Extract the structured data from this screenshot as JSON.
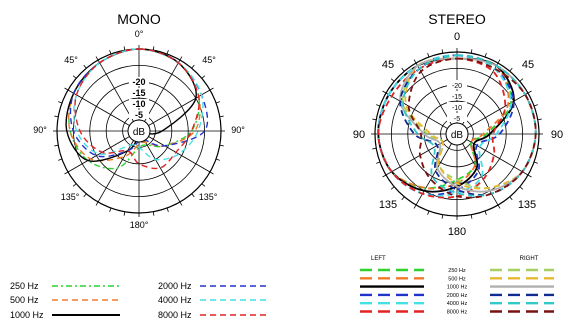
{
  "colors": {
    "250": "#2fd12f",
    "500": "#f07a2a",
    "1000": "#000000",
    "2000": "#2233cc",
    "4000": "#44e0e8",
    "8000": "#e02424",
    "right_250": "#a8d060",
    "right_500": "#e8b830",
    "right_1000": "#b0b0b0",
    "right_2000": "#102a90",
    "right_4000": "#30c8c8",
    "right_8000": "#7a1010"
  },
  "chart_data": [
    {
      "type": "polar-line",
      "title": "MONO",
      "angle_labels": [
        "0°",
        "45°",
        "90°",
        "135°",
        "180°",
        "135°",
        "90°",
        "45°"
      ],
      "radial_labels": [
        "-5",
        "-10",
        "-15",
        "-20"
      ],
      "center_label": "dB",
      "rlim": [
        -25,
        0
      ],
      "grid": true,
      "series": [
        {
          "name": "250 Hz",
          "style": "dash-dot",
          "color_key": "250",
          "angles": [
            0,
            30,
            60,
            90,
            120,
            150,
            180,
            210,
            240,
            270,
            300,
            330
          ],
          "values": [
            0,
            -1,
            -4,
            -9,
            -16,
            -20,
            -20,
            -12,
            -7,
            -4,
            -2,
            -1
          ]
        },
        {
          "name": "500 Hz",
          "style": "dashed",
          "color_key": "500",
          "angles": [
            0,
            30,
            60,
            90,
            120,
            150,
            180,
            210,
            240,
            270,
            300,
            330
          ],
          "values": [
            0,
            -1,
            -4,
            -8,
            -16,
            -21,
            -21,
            -16,
            -8,
            -4,
            -2,
            -1
          ]
        },
        {
          "name": "1000 Hz",
          "style": "solid",
          "color_key": "1000",
          "angles": [
            0,
            30,
            60,
            90,
            120,
            150,
            180,
            210,
            240,
            270,
            300,
            330
          ],
          "values": [
            0,
            -1,
            -5,
            -18,
            -24,
            -24,
            -24,
            -18,
            -7,
            -3,
            -2,
            -1
          ]
        },
        {
          "name": "2000 Hz",
          "style": "dashed",
          "color_key": "2000",
          "angles": [
            0,
            30,
            60,
            90,
            120,
            150,
            180,
            210,
            240,
            270,
            300,
            330
          ],
          "values": [
            0,
            -1,
            -3,
            -5,
            -16,
            -22,
            -22,
            -18,
            -10,
            -5,
            -2,
            -1
          ]
        },
        {
          "name": "4000 Hz",
          "style": "dashed",
          "color_key": "4000",
          "angles": [
            0,
            30,
            60,
            90,
            120,
            150,
            180,
            210,
            240,
            270,
            300,
            330
          ],
          "values": [
            0,
            -1,
            -3,
            -7,
            -11,
            -15,
            -20,
            -20,
            -11,
            -6,
            -3,
            -1
          ]
        },
        {
          "name": "8000 Hz",
          "style": "dashed",
          "color_key": "8000",
          "angles": [
            0,
            30,
            60,
            90,
            120,
            150,
            180,
            210,
            240,
            270,
            300,
            330
          ],
          "values": [
            0,
            -1,
            -4,
            -9,
            -12,
            -12,
            -15,
            -18,
            -12,
            -7,
            -3,
            -1
          ]
        }
      ],
      "legend": [
        {
          "label": "250 Hz",
          "color_key": "250",
          "style": "dash-dot"
        },
        {
          "label": "500 Hz",
          "color_key": "500",
          "style": "dashed"
        },
        {
          "label": "1000 Hz",
          "color_key": "1000",
          "style": "solid"
        },
        {
          "label": "2000 Hz",
          "color_key": "2000",
          "style": "dashed"
        },
        {
          "label": "4000 Hz",
          "color_key": "4000",
          "style": "dashed"
        },
        {
          "label": "8000 Hz",
          "color_key": "8000",
          "style": "dashed"
        }
      ]
    },
    {
      "type": "polar-line",
      "title": "STEREO",
      "angle_labels": [
        "0",
        "45",
        "90",
        "135",
        "180",
        "135",
        "90",
        "45"
      ],
      "radial_labels": [
        "-5",
        "-10",
        "-15",
        "-20"
      ],
      "center_label": "dB",
      "rlim": [
        -25,
        0
      ],
      "grid": true,
      "legend_headers": [
        "LEFT",
        "RIGHT"
      ],
      "legend_labels": [
        "250 Hz",
        "500 Hz",
        "1000 Hz",
        "2000 Hz",
        "4000 Hz",
        "8000 Hz"
      ],
      "series": [
        {
          "name": "LEFT 250 Hz",
          "style": "dashed",
          "color_key": "250",
          "angles": [
            0,
            30,
            60,
            90,
            120,
            150,
            180,
            210,
            240,
            270,
            300,
            330
          ],
          "values": [
            -2,
            -1,
            -6,
            -16,
            -20,
            -14,
            -11,
            -6,
            -2,
            -1,
            -1,
            -1
          ]
        },
        {
          "name": "LEFT 500 Hz",
          "style": "dashed",
          "color_key": "500",
          "angles": [
            0,
            30,
            60,
            90,
            120,
            150,
            180,
            210,
            240,
            270,
            300,
            330
          ],
          "values": [
            -2,
            -1,
            -7,
            -17,
            -20,
            -14,
            -10,
            -6,
            -2,
            -1,
            -1,
            -1
          ]
        },
        {
          "name": "LEFT 1000 Hz",
          "style": "solid",
          "color_key": "1000",
          "angles": [
            0,
            30,
            60,
            90,
            120,
            150,
            180,
            210,
            240,
            270,
            300,
            330
          ],
          "values": [
            -2,
            -1,
            -5,
            -15,
            -19,
            -13,
            -9,
            -5,
            -2,
            -1,
            -1,
            -1
          ]
        },
        {
          "name": "LEFT 2000 Hz",
          "style": "dashed",
          "color_key": "2000",
          "angles": [
            0,
            30,
            60,
            90,
            120,
            150,
            180,
            210,
            240,
            270,
            300,
            330
          ],
          "values": [
            -1,
            -2,
            -5,
            -12,
            -18,
            -12,
            -8,
            -4,
            -2,
            -1,
            -1,
            -1
          ]
        },
        {
          "name": "LEFT 4000 Hz",
          "style": "dashed",
          "color_key": "4000",
          "angles": [
            0,
            30,
            60,
            90,
            120,
            150,
            180,
            210,
            240,
            270,
            300,
            330
          ],
          "values": [
            -1,
            -2,
            -6,
            -13,
            -17,
            -10,
            -7,
            -4,
            -2,
            -1,
            -1,
            -1
          ]
        },
        {
          "name": "LEFT 8000 Hz",
          "style": "dashed",
          "color_key": "8000",
          "angles": [
            0,
            30,
            60,
            90,
            120,
            150,
            180,
            210,
            240,
            270,
            300,
            330
          ],
          "values": [
            -2,
            -3,
            -8,
            -14,
            -12,
            -9,
            -6,
            -4,
            -2,
            -1,
            -2,
            -2
          ]
        },
        {
          "name": "RIGHT 250 Hz",
          "style": "dashed",
          "color_key": "right_250",
          "angles": [
            0,
            30,
            60,
            90,
            120,
            150,
            180,
            210,
            240,
            270,
            300,
            330
          ],
          "values": [
            -2,
            -1,
            -1,
            -1,
            -2,
            -6,
            -11,
            -14,
            -20,
            -16,
            -6,
            -1
          ]
        },
        {
          "name": "RIGHT 500 Hz",
          "style": "dashed",
          "color_key": "right_500",
          "angles": [
            0,
            30,
            60,
            90,
            120,
            150,
            180,
            210,
            240,
            270,
            300,
            330
          ],
          "values": [
            -2,
            -1,
            -1,
            -1,
            -2,
            -6,
            -10,
            -14,
            -20,
            -17,
            -7,
            -1
          ]
        },
        {
          "name": "RIGHT 1000 Hz",
          "style": "solid",
          "color_key": "right_1000",
          "angles": [
            0,
            30,
            60,
            90,
            120,
            150,
            180,
            210,
            240,
            270,
            300,
            330
          ],
          "values": [
            -2,
            -1,
            -1,
            -1,
            -2,
            -5,
            -9,
            -13,
            -19,
            -15,
            -5,
            -1
          ]
        },
        {
          "name": "RIGHT 2000 Hz",
          "style": "dashed",
          "color_key": "right_2000",
          "angles": [
            0,
            30,
            60,
            90,
            120,
            150,
            180,
            210,
            240,
            270,
            300,
            330
          ],
          "values": [
            -1,
            -1,
            -1,
            -1,
            -2,
            -4,
            -8,
            -12,
            -18,
            -12,
            -5,
            -2
          ]
        },
        {
          "name": "RIGHT 4000 Hz",
          "style": "dashed",
          "color_key": "right_4000",
          "angles": [
            0,
            30,
            60,
            90,
            120,
            150,
            180,
            210,
            240,
            270,
            300,
            330
          ],
          "values": [
            -1,
            -1,
            -1,
            -1,
            -2,
            -4,
            -7,
            -10,
            -17,
            -13,
            -6,
            -2
          ]
        },
        {
          "name": "RIGHT 8000 Hz",
          "style": "dashed",
          "color_key": "right_8000",
          "angles": [
            0,
            30,
            60,
            90,
            120,
            150,
            180,
            210,
            240,
            270,
            300,
            330
          ],
          "values": [
            -2,
            -2,
            -1,
            -1,
            -2,
            -4,
            -6,
            -9,
            -12,
            -14,
            -8,
            -3
          ]
        }
      ]
    }
  ]
}
